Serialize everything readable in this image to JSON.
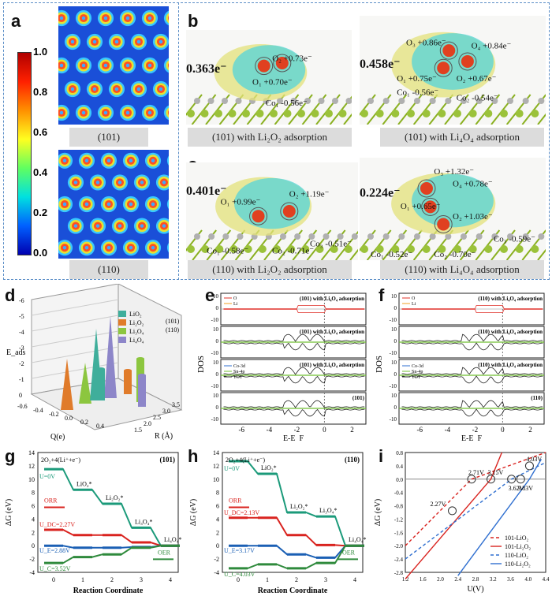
{
  "panel_a": {
    "label": "a",
    "colorbar_ticks": [
      "1.0",
      "0.8",
      "0.6",
      "0.4",
      "0.2",
      "0.0"
    ],
    "cap_top": "(101)",
    "cap_bottom": "(110)"
  },
  "panel_b": {
    "label": "b",
    "cap_left": "(101) with Li₂O₂ adsorption",
    "cap_right": "(101) with Li₄O₄ adsorption",
    "left_ann": [
      "0.363e⁻",
      "O₂ +0.73e⁻",
      "O₁ +0.70e⁻",
      "Co₁ -0.56e⁻"
    ],
    "right_ann": [
      "0.458e⁻",
      "O₃ +0.86e⁻",
      "O₄ +0.84e⁻",
      "O₁ +0.75e⁻",
      "O₂ +0.67e⁻",
      "Co₁ -0.56e⁻",
      "Co₂ -0.54e⁻"
    ]
  },
  "panel_c": {
    "label": "c",
    "cap_left": "(110) with Li₂O₂ adsorption",
    "cap_right": "(110) with Li₄O₄ adsorption",
    "left_ann": [
      "0.401e⁻",
      "O₁ +0.99e⁻",
      "O₂ +1.19e⁻",
      "Co₁ -0.58e⁻",
      "Co₂ -0.71e⁻",
      "Co₃ -0.51e⁻"
    ],
    "right_ann": [
      "0.224e⁻",
      "O₃ +1.32e⁻",
      "O₄ +0.78e⁻",
      "O₁ +0.65e⁻",
      "O₂ +1.03e⁻",
      "Co₃ -0.59e⁻",
      "Co₁ -0.52e⁻",
      "Co₂ -0.70e⁻"
    ]
  },
  "panel_d": {
    "label": "d",
    "zlabel": "E_ads",
    "xlabel": "Q(e)",
    "ylabel": "R (Å)",
    "legend": [
      "LiO₂",
      "Li₂O₂",
      "Li₃O₄",
      "Li₄O₄"
    ],
    "legend_colors": [
      "#3fae9b",
      "#e07b2a",
      "#8cc63f",
      "#8d86c9"
    ],
    "legend_shapes": [
      "(101)",
      "(110)"
    ],
    "zticks": [
      "-6",
      "-5",
      "-4",
      "-3",
      "-2",
      "-1",
      "0"
    ],
    "xticks": [
      "-0.6",
      "-0.4",
      "-0.2",
      "0.0",
      "0.2",
      "0.4"
    ],
    "yticks": [
      "1.5",
      "2.0",
      "2.5",
      "3.0",
      "3.5"
    ]
  },
  "panel_e": {
    "label": "e",
    "ylabel": "DOS",
    "xlabel": "E-E_F",
    "sub_titles": [
      "(101) with Li₄O₄ adsorption",
      "(101) with Li₄O₄ adsorption",
      "(101) with Li₄O₄ adsorption",
      "(101)"
    ],
    "legend1": [
      "O",
      "Li"
    ],
    "legend3": [
      "Co-3d",
      "Sn-4p",
      "TOT"
    ],
    "xticks": [
      "-6",
      "-4",
      "-2",
      "0",
      "2"
    ],
    "yticks": [
      "10",
      "5",
      "0",
      "-5",
      "-10"
    ]
  },
  "panel_f": {
    "label": "f",
    "ylabel": "DOS",
    "xlabel": "E-E_F",
    "sub_titles": [
      "(110) with Li₄O₄ adsorption",
      "(110) with Li₄O₄ adsorption",
      "(110) with Li₄O₄ adsorption",
      "(110)"
    ],
    "legend1": [
      "O",
      "Li"
    ],
    "legend3": [
      "Co-3d",
      "Sn-4p",
      "TOT"
    ],
    "xticks": [
      "-6",
      "-4",
      "-2",
      "0",
      "2"
    ],
    "yticks": [
      "10",
      "5",
      "0",
      "-5",
      "-10"
    ]
  },
  "panel_g": {
    "label": "g",
    "tag": "(101)",
    "reaction": "2O₂+4(Li⁺+e⁻)",
    "ylabel": "ΔG (eV)",
    "xlabel": "Reaction Coordinate",
    "U0": "U=0V",
    "UDC": "U_DC=2.27V",
    "UE": "U_E=2.88V",
    "UC": "U_C=3.52V",
    "orr": "ORR",
    "oer": "OER",
    "species": [
      "LiO₂*",
      "Li₂O₂*",
      "Li₃O₄*",
      "Li₄O₄*"
    ],
    "xticks": [
      "0",
      "1",
      "2",
      "3",
      "4"
    ],
    "yticks": [
      "14",
      "12",
      "10",
      "8",
      "6",
      "4",
      "2",
      "0",
      "-2",
      "-4"
    ]
  },
  "panel_h": {
    "label": "h",
    "tag": "(110)",
    "reaction": "2O₂+4(Li⁺+e⁻)",
    "ylabel": "ΔG (eV)",
    "xlabel": "Reaction Coordinate",
    "U0": "U=0V",
    "UDC": "U_DC=2.13V",
    "UE": "U_E=3.17V",
    "UC": "U_C=4.03V",
    "orr": "ORR",
    "oer": "OER",
    "species": [
      "LiO₂*",
      "Li₂O₂*",
      "Li₃O₄*",
      "Li₄O₄*"
    ],
    "xticks": [
      "0",
      "1",
      "2",
      "3",
      "4"
    ],
    "yticks": [
      "14",
      "12",
      "10",
      "8",
      "6",
      "4",
      "2",
      "0",
      "-2",
      "-4"
    ]
  },
  "panel_i": {
    "label": "i",
    "ylabel": "ΔG (eV)",
    "xlabel": "U(V)",
    "points": [
      "2.27V",
      "2.71V",
      "3.15V",
      "3.62V",
      "3.83V",
      "4.03V"
    ],
    "legend": [
      "101-LiO₂",
      "101-Li₂O₂",
      "110-LiO₂",
      "110-Li₂O₂"
    ],
    "xticks": [
      "1.2",
      "1.6",
      "2.0",
      "2.4",
      "2.8",
      "3.2",
      "3.6",
      "4.0",
      "4.4"
    ],
    "yticks": [
      "0.8",
      "0.4",
      "0.0",
      "-0.4",
      "-0.8",
      "-1.2",
      "-1.6",
      "-2.0",
      "-2.4",
      "-2.8"
    ]
  },
  "chart_data": [
    {
      "type": "line",
      "title": "(101)",
      "xlabel": "Reaction Coordinate",
      "ylabel": "ΔG (eV)",
      "x": [
        0,
        1,
        2,
        3,
        4
      ],
      "series": [
        {
          "name": "U=0V",
          "values": [
            11.5,
            8.4,
            6.3,
            2.7,
            0
          ]
        },
        {
          "name": "U_DC=2.27V",
          "values": [
            2.4,
            1.6,
            1.6,
            0.5,
            0
          ]
        },
        {
          "name": "U_E=2.88V",
          "values": [
            0,
            -0.3,
            -0.3,
            -0.2,
            0
          ]
        },
        {
          "name": "U_C=3.52V",
          "values": [
            -2.6,
            -1.7,
            -1.3,
            -0.3,
            0
          ]
        }
      ]
    },
    {
      "type": "line",
      "title": "(110)",
      "xlabel": "Reaction Coordinate",
      "ylabel": "ΔG (eV)",
      "x": [
        0,
        1,
        2,
        3,
        4
      ],
      "series": [
        {
          "name": "U=0V",
          "values": [
            12.7,
            10.8,
            5.0,
            4.4,
            0
          ]
        },
        {
          "name": "U_DC=2.13V",
          "values": [
            4.2,
            4.2,
            1.6,
            0.1,
            0
          ]
        },
        {
          "name": "U_E=3.17V",
          "values": [
            0,
            0,
            -1.3,
            -1.8,
            0
          ]
        },
        {
          "name": "U_C=4.03V",
          "values": [
            -3.4,
            -2.8,
            -3.4,
            -2.6,
            0
          ]
        }
      ]
    },
    {
      "type": "line",
      "xlabel": "U(V)",
      "ylabel": "ΔG (eV)",
      "xlim": [
        1.2,
        4.4
      ],
      "ylim": [
        -2.8,
        0.8
      ],
      "series": [
        {
          "name": "101-LiO₂",
          "points": [
            [
              1.2,
              -2.0
            ],
            [
              2.71,
              0
            ],
            [
              4.4,
              0.8
            ]
          ]
        },
        {
          "name": "101-Li₂O₂",
          "points": [
            [
              1.2,
              -3.0
            ],
            [
              3.15,
              0
            ],
            [
              3.4,
              0.8
            ]
          ]
        },
        {
          "name": "110-LiO₂",
          "points": [
            [
              1.2,
              -2.4
            ],
            [
              3.62,
              0
            ],
            [
              4.4,
              0.5
            ]
          ]
        },
        {
          "name": "110-Li₂O₂",
          "points": [
            [
              2.4,
              -2.9
            ],
            [
              4.03,
              0
            ],
            [
              4.3,
              0.6
            ]
          ]
        }
      ]
    }
  ]
}
